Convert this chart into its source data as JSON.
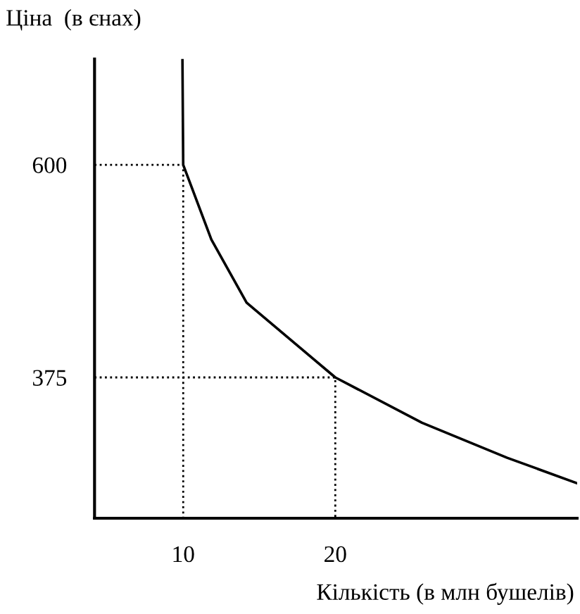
{
  "chart_data": {
    "type": "line",
    "xlabel": "Кількість (в млн бушелів)",
    "ylabel": "Ціна  (в єнах)",
    "xlim": [
      4.17,
      35.9
    ],
    "ylim": [
      226,
      712
    ],
    "xticks": [
      10,
      20
    ],
    "yticks": [
      375,
      600
    ],
    "grid": false,
    "legend": false,
    "marker": "none",
    "series": [
      {
        "color": "#000000",
        "line_style": "solid",
        "x": [
          9.95,
          10,
          11.85,
          14.17,
          20,
          25.7,
          31.3,
          35.9
        ],
        "values": [
          712,
          600,
          521,
          454,
          375,
          327,
          290,
          263
        ]
      },
      {
        "color": "#000000",
        "line_style": "dotted",
        "x": [
          4.17,
          10,
          10
        ],
        "values": [
          600,
          600,
          226
        ]
      },
      {
        "color": "#000000",
        "line_style": "dotted",
        "x": [
          4.17,
          20,
          20
        ],
        "values": [
          375,
          375,
          226
        ]
      }
    ]
  }
}
